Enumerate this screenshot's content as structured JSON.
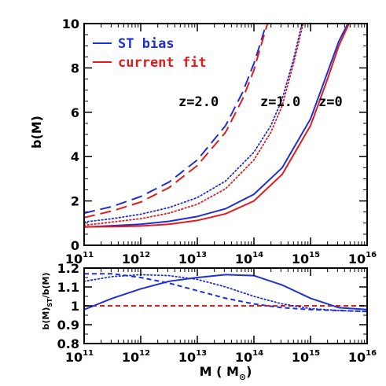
{
  "chart_data": [
    {
      "type": "line",
      "title": "",
      "xlabel": "",
      "ylabel": "b(M)",
      "xscale": "log",
      "xlim": [
        100000000000.0,
        1e+16
      ],
      "ylim": [
        0,
        10
      ],
      "x_ticks": [
        11,
        12,
        13,
        14,
        15,
        16
      ],
      "x_tick_labels": [
        {
          "base": "10",
          "exp": "11"
        },
        {
          "base": "10",
          "exp": "12"
        },
        {
          "base": "10",
          "exp": "13"
        },
        {
          "base": "10",
          "exp": "14"
        },
        {
          "base": "10",
          "exp": "15"
        },
        {
          "base": "10",
          "exp": "16"
        }
      ],
      "y_ticks": [
        0,
        2,
        4,
        6,
        8,
        10
      ],
      "y_tick_labels": [
        "0",
        "2",
        "4",
        "6",
        "8",
        "10"
      ],
      "legend": {
        "placement": "top-left",
        "entries": [
          {
            "label": "ST bias",
            "color": "#1f2fd6"
          },
          {
            "label": "current fit",
            "color": "#e31b1b"
          }
        ]
      },
      "annotations": [
        "z=2.0",
        "z=1.0",
        "z=0"
      ],
      "series": [
        {
          "color": "#1f2fd6",
          "dash": "long",
          "x_log10": [
            11.0,
            11.5,
            12.0,
            12.5,
            13.0,
            13.5,
            13.8,
            14.0,
            14.1,
            14.22
          ],
          "values": [
            1.45,
            1.75,
            2.2,
            2.85,
            3.85,
            5.4,
            6.9,
            8.2,
            9.0,
            10.0
          ]
        },
        {
          "color": "#e31b1b",
          "dash": "long",
          "x_log10": [
            11.0,
            11.5,
            12.0,
            12.5,
            13.0,
            13.5,
            13.8,
            14.0,
            14.1,
            14.24
          ],
          "values": [
            1.25,
            1.55,
            1.95,
            2.6,
            3.6,
            5.1,
            6.6,
            7.9,
            8.8,
            10.0
          ]
        },
        {
          "color": "#1f2fd6",
          "dash": "dot",
          "x_log10": [
            11.0,
            11.5,
            12.0,
            12.5,
            13.0,
            13.5,
            14.0,
            14.3,
            14.5,
            14.7,
            14.85
          ],
          "values": [
            1.05,
            1.2,
            1.4,
            1.7,
            2.15,
            2.9,
            4.2,
            5.4,
            6.6,
            8.4,
            10.0
          ]
        },
        {
          "color": "#e31b1b",
          "dash": "dot",
          "x_log10": [
            11.0,
            11.5,
            12.0,
            12.5,
            13.0,
            13.5,
            14.0,
            14.3,
            14.5,
            14.7,
            14.87
          ],
          "values": [
            0.9,
            1.05,
            1.2,
            1.45,
            1.85,
            2.55,
            3.85,
            5.1,
            6.3,
            8.2,
            10.0
          ]
        },
        {
          "color": "#1f2fd6",
          "dash": "solid",
          "x_log10": [
            11.0,
            11.5,
            12.0,
            12.5,
            13.0,
            13.5,
            14.0,
            14.5,
            15.0,
            15.3,
            15.5,
            15.66
          ],
          "values": [
            0.82,
            0.88,
            0.95,
            1.08,
            1.3,
            1.65,
            2.3,
            3.5,
            5.7,
            7.8,
            9.2,
            10.0
          ]
        },
        {
          "color": "#e31b1b",
          "dash": "solid",
          "x_log10": [
            11.0,
            11.5,
            12.0,
            12.5,
            13.0,
            13.5,
            14.0,
            14.5,
            15.0,
            15.3,
            15.5,
            15.68
          ],
          "values": [
            0.83,
            0.84,
            0.87,
            0.95,
            1.12,
            1.42,
            2.0,
            3.2,
            5.4,
            7.5,
            9.0,
            10.0
          ]
        }
      ]
    },
    {
      "type": "line",
      "title": "",
      "xlabel": "M ( M☉)",
      "xlabel_parts": {
        "prefix": "M ( M",
        "sub": "⊙",
        "suffix": ")"
      },
      "ylabel": "b(M)ST/b(M)",
      "ylabel_parts": {
        "a": "b(M)",
        "sub": "ST",
        "b": "/b(M)"
      },
      "xscale": "log",
      "xlim": [
        100000000000.0,
        1e+16
      ],
      "ylim": [
        0.8,
        1.2
      ],
      "x_ticks": [
        11,
        12,
        13,
        14,
        15,
        16
      ],
      "x_tick_labels": [
        {
          "base": "10",
          "exp": "11"
        },
        {
          "base": "10",
          "exp": "12"
        },
        {
          "base": "10",
          "exp": "13"
        },
        {
          "base": "10",
          "exp": "14"
        },
        {
          "base": "10",
          "exp": "15"
        },
        {
          "base": "10",
          "exp": "16"
        }
      ],
      "y_ticks": [
        0.8,
        0.9,
        1.0,
        1.1,
        1.2
      ],
      "y_tick_labels": [
        "0.8",
        "0.9",
        "1",
        "1.1",
        "1.2"
      ],
      "series": [
        {
          "color": "#e31b1b",
          "dash": "short",
          "x_log10": [
            11.0,
            16.0
          ],
          "values": [
            1.0,
            1.0
          ]
        },
        {
          "color": "#1f2fd6",
          "dash": "solid",
          "x_log10": [
            11.0,
            11.5,
            12.0,
            12.5,
            13.0,
            13.5,
            14.0,
            14.5,
            15.0,
            15.5,
            16.0
          ],
          "values": [
            0.98,
            1.04,
            1.09,
            1.13,
            1.15,
            1.165,
            1.16,
            1.11,
            1.04,
            0.99,
            0.98
          ]
        },
        {
          "color": "#1f2fd6",
          "dash": "dot",
          "x_log10": [
            11.0,
            11.5,
            12.0,
            12.5,
            13.0,
            13.5,
            14.0,
            14.5,
            15.0,
            15.5,
            16.0
          ],
          "values": [
            1.13,
            1.155,
            1.165,
            1.16,
            1.14,
            1.1,
            1.05,
            1.01,
            0.985,
            0.975,
            0.97
          ]
        },
        {
          "color": "#1f2fd6",
          "dash": "short",
          "x_log10": [
            11.0,
            11.5,
            12.0,
            12.5,
            13.0,
            13.5,
            14.0,
            14.5,
            15.0,
            15.5,
            16.0
          ],
          "values": [
            1.17,
            1.17,
            1.15,
            1.12,
            1.08,
            1.04,
            1.01,
            0.99,
            0.98,
            0.975,
            0.97
          ]
        }
      ]
    }
  ]
}
